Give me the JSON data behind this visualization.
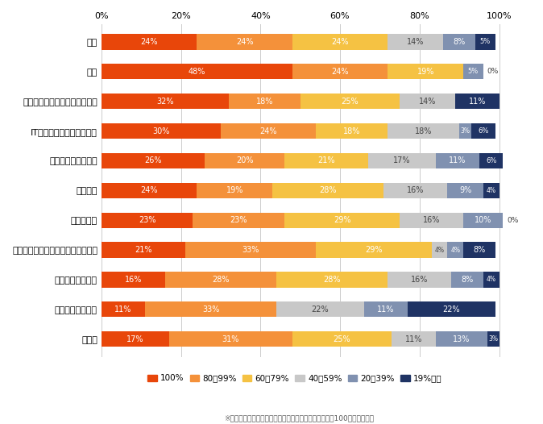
{
  "categories": [
    "全体",
    "商社",
    "メーカー（機械・電気・電子）",
    "IT・通信・インターネット",
    "不動産・建設・設備",
    "サービス",
    "流通・小売",
    "メーカー（素材・食品・医薬品他）",
    "運輸・物流・倉庫",
    "コンサルティング",
    "その他"
  ],
  "series": {
    "100%": [
      24,
      48,
      32,
      30,
      26,
      24,
      23,
      21,
      16,
      11,
      17
    ],
    "80~99%": [
      24,
      24,
      18,
      24,
      20,
      19,
      23,
      33,
      28,
      33,
      31
    ],
    "60~79%": [
      24,
      19,
      25,
      18,
      21,
      28,
      29,
      29,
      28,
      0,
      25
    ],
    "40~59%": [
      14,
      0,
      14,
      18,
      17,
      16,
      16,
      4,
      16,
      22,
      11
    ],
    "20~39%": [
      8,
      5,
      0,
      3,
      11,
      9,
      10,
      4,
      8,
      11,
      13
    ],
    "19%以下": [
      5,
      0,
      11,
      6,
      6,
      4,
      0,
      8,
      4,
      22,
      3
    ]
  },
  "colors": {
    "100%": "#E8460A",
    "80~99%": "#F4913A",
    "60~79%": "#F5C243",
    "40~59%": "#C8C8C8",
    "20~39%": "#8091B0",
    "19%以下": "#1F3364"
  },
  "legend_labels": [
    "100%",
    "80～99%",
    "60～79%",
    "40～59%",
    "20～39%",
    "19%以下"
  ],
  "note": "※小数点以下を四捨五入しているため、必ずしも合計が100にならない。",
  "bg_color": "#FFFFFF",
  "bar_height": 0.52,
  "figsize": [
    6.74,
    5.26
  ],
  "dpi": 100
}
